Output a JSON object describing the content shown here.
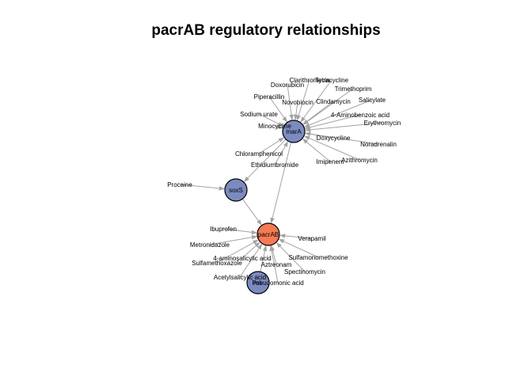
{
  "title": "pacrAB regulatory relationships",
  "colors": {
    "regulator": "#7b8bc0",
    "target": "#f47b54",
    "edge": "#a3a3a3"
  },
  "hubs": [
    {
      "id": "marA",
      "label": "marA",
      "role": "regulator"
    },
    {
      "id": "soxS",
      "label": "soxS",
      "role": "regulator"
    },
    {
      "id": "pacrAB",
      "label": "pacrAB",
      "role": "target"
    },
    {
      "id": "rob",
      "label": "rob",
      "role": "regulator"
    }
  ],
  "hub_edges": [
    {
      "from": "marA",
      "to": "pacrAB"
    },
    {
      "from": "marA",
      "to": "soxS"
    },
    {
      "from": "soxS",
      "to": "pacrAB"
    },
    {
      "from": "rob",
      "to": "pacrAB"
    }
  ],
  "inducers": [
    {
      "label": "Tetracycline",
      "to": "marA"
    },
    {
      "label": "Clarithromycin",
      "to": "marA"
    },
    {
      "label": "Doxorubicin",
      "to": "marA"
    },
    {
      "label": "Trimethoprim",
      "to": "marA"
    },
    {
      "label": "Piperacillin",
      "to": "marA"
    },
    {
      "label": "Salicylate",
      "to": "marA"
    },
    {
      "label": "Novobiocin",
      "to": "marA"
    },
    {
      "label": "Clindamycin",
      "to": "marA"
    },
    {
      "label": "Sodium urate",
      "to": "marA"
    },
    {
      "label": "4-Aminobenzoic acid",
      "to": "marA"
    },
    {
      "label": "Erythromycin",
      "to": "marA"
    },
    {
      "label": "Minocycline",
      "to": "marA"
    },
    {
      "label": "Doxycycline",
      "to": "marA"
    },
    {
      "label": "Noradrenalin",
      "to": "marA"
    },
    {
      "label": "Chloramphenicol",
      "to": "marA"
    },
    {
      "label": "Azithromycin",
      "to": "marA"
    },
    {
      "label": "Imipenem",
      "to": "marA"
    },
    {
      "label": "Ethidiumbromide",
      "to": "marA"
    },
    {
      "label": "Procaine",
      "to": "soxS"
    },
    {
      "label": "Ibuprofen",
      "to": "pacrAB"
    },
    {
      "label": "Verapamil",
      "to": "pacrAB"
    },
    {
      "label": "Metronidazole",
      "to": "pacrAB"
    },
    {
      "label": "Sulfamonomethoxine",
      "to": "pacrAB"
    },
    {
      "label": "4-aminosalicylic acid",
      "to": "pacrAB"
    },
    {
      "label": "Sulfamethoxazole",
      "to": "pacrAB"
    },
    {
      "label": "Aztreonam",
      "to": "pacrAB"
    },
    {
      "label": "Spectinomycin",
      "to": "pacrAB"
    },
    {
      "label": "Acetylsalicylic acid",
      "to": "pacrAB"
    },
    {
      "label": "Pseudomonic acid",
      "to": "pacrAB"
    }
  ]
}
